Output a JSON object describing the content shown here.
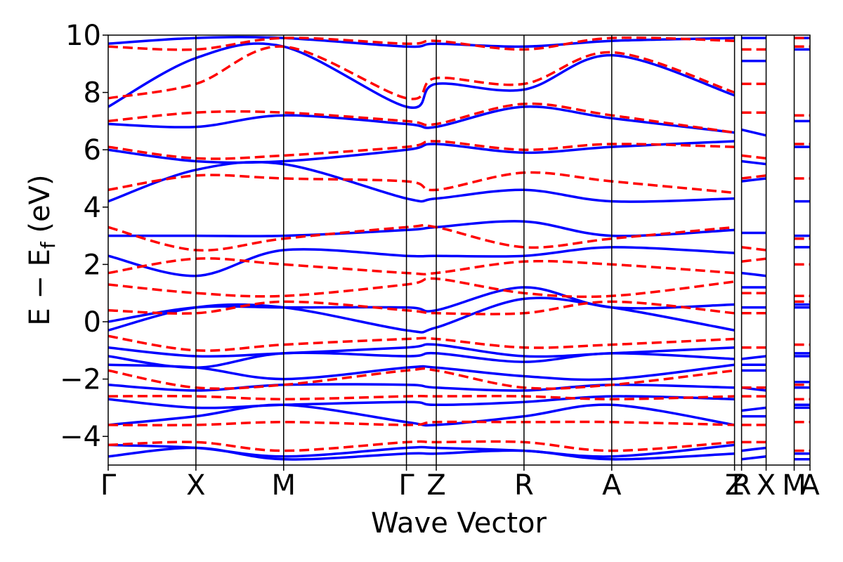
{
  "chart_data": {
    "type": "line",
    "title": "",
    "xlabel": "Wave Vector",
    "ylabel": "E − E_f (eV)",
    "ylabel_parts": {
      "main": "E − E",
      "sub": "f",
      "unit": " (eV)"
    },
    "ylim": [
      -5,
      10
    ],
    "yticks": [
      -4,
      -2,
      0,
      2,
      4,
      6,
      8,
      10
    ],
    "ytick_labels": [
      "−4",
      "−2",
      "0",
      "2",
      "4",
      "6",
      "8",
      "10"
    ],
    "kpath": {
      "labels": [
        "Γ",
        "X",
        "M",
        "Γ",
        "Z",
        "R",
        "A",
        "Z",
        "R",
        "X",
        "M",
        "A"
      ],
      "positions": [
        0.0,
        0.5,
        1.0,
        1.7,
        1.87,
        2.37,
        2.87,
        3.57,
        3.61,
        3.75,
        3.91,
        4.0
      ],
      "segment_breaks": [
        "Z|R",
        "X|M"
      ]
    },
    "x_range": [
      0.0,
      4.0
    ],
    "grid": false,
    "legend": "none",
    "series": [
      {
        "style": "solid",
        "color": "#0000ff",
        "energies_at_high_symmetry_points": [
          [
            -4.7,
            -4.4,
            -4.8,
            -4.6,
            -4.6,
            -4.5,
            -4.8,
            -4.6,
            -4.8,
            -4.7,
            -4.8,
            -4.8
          ],
          [
            -4.3,
            -4.4,
            -4.7,
            -4.4,
            -4.4,
            -4.5,
            -4.7,
            -4.3,
            -4.5,
            -4.4,
            -4.6,
            -4.6
          ],
          [
            -3.6,
            -3.3,
            -2.9,
            -3.5,
            -3.6,
            -3.3,
            -2.9,
            -3.6,
            -3.3,
            -3.3,
            -3.0,
            -3.0
          ],
          [
            -2.7,
            -3.0,
            -2.9,
            -2.8,
            -2.9,
            -2.8,
            -2.6,
            -2.7,
            -3.1,
            -3.0,
            -2.9,
            -2.9
          ],
          [
            -2.2,
            -2.4,
            -2.2,
            -2.2,
            -2.3,
            -2.4,
            -2.2,
            -2.3,
            -2.3,
            -2.4,
            -2.3,
            -2.3
          ],
          [
            -1.5,
            -1.6,
            -2.0,
            -1.6,
            -1.6,
            -1.9,
            -2.0,
            -1.5,
            -1.7,
            -1.7,
            -2.1,
            -2.1
          ],
          [
            -1.2,
            -1.6,
            -1.1,
            -1.2,
            -1.1,
            -1.4,
            -1.1,
            -1.3,
            -1.5,
            -1.5,
            -1.2,
            -1.2
          ],
          [
            -0.9,
            -1.2,
            -1.1,
            -0.9,
            -0.8,
            -1.2,
            -1.1,
            -0.9,
            -1.3,
            -1.2,
            -1.1,
            -1.1
          ],
          [
            -0.3,
            0.5,
            0.5,
            -0.3,
            -0.2,
            0.8,
            0.5,
            -0.3,
            0.5,
            0.5,
            0.5,
            0.5
          ],
          [
            0.0,
            0.5,
            0.5,
            0.5,
            0.4,
            1.2,
            0.5,
            0.6,
            1.2,
            1.2,
            0.6,
            0.6
          ],
          [
            2.3,
            1.6,
            2.5,
            2.3,
            2.3,
            2.3,
            2.6,
            2.4,
            1.7,
            1.6,
            2.6,
            2.6
          ],
          [
            3.0,
            3.0,
            3.0,
            3.2,
            3.3,
            3.5,
            3.0,
            3.2,
            3.1,
            3.1,
            3.0,
            3.0
          ],
          [
            4.2,
            5.3,
            5.5,
            4.3,
            4.3,
            4.6,
            4.2,
            4.3,
            4.9,
            5.0,
            4.2,
            4.2
          ],
          [
            6.0,
            5.6,
            5.6,
            6.0,
            6.2,
            5.9,
            6.1,
            6.3,
            5.6,
            5.5,
            6.1,
            6.1
          ],
          [
            6.9,
            6.8,
            7.2,
            6.9,
            6.8,
            7.5,
            7.1,
            6.6,
            6.7,
            6.5,
            7.0,
            7.0
          ],
          [
            7.5,
            9.2,
            9.6,
            7.5,
            8.3,
            8.1,
            9.3,
            7.9,
            9.1,
            9.1,
            9.5,
            9.5
          ],
          [
            9.7,
            9.9,
            9.9,
            9.6,
            9.7,
            9.6,
            9.8,
            9.9,
            9.9,
            9.9,
            9.9,
            9.9
          ]
        ]
      },
      {
        "style": "dashed",
        "color": "#ff0000",
        "energies_at_high_symmetry_points": [
          [
            -4.3,
            -4.2,
            -4.5,
            -4.2,
            -4.2,
            -4.2,
            -4.5,
            -4.2,
            -4.2,
            -4.2,
            -4.5,
            -4.5
          ],
          [
            -3.6,
            -3.6,
            -3.5,
            -3.6,
            -3.5,
            -3.5,
            -3.5,
            -3.6,
            -3.6,
            -3.6,
            -3.5,
            -3.5
          ],
          [
            -2.6,
            -2.6,
            -2.7,
            -2.6,
            -2.6,
            -2.6,
            -2.7,
            -2.6,
            -2.6,
            -2.6,
            -2.7,
            -2.7
          ],
          [
            -1.7,
            -2.3,
            -2.2,
            -1.7,
            -1.7,
            -2.3,
            -2.2,
            -1.7,
            -2.3,
            -2.3,
            -2.2,
            -2.2
          ],
          [
            -0.5,
            -1.0,
            -0.8,
            -0.6,
            -0.6,
            -0.9,
            -0.8,
            -0.6,
            -0.9,
            -0.9,
            -0.8,
            -0.8
          ],
          [
            0.4,
            0.3,
            0.7,
            0.4,
            0.3,
            0.3,
            0.7,
            0.3,
            0.3,
            0.3,
            0.7,
            0.7
          ],
          [
            1.3,
            1.0,
            0.9,
            1.3,
            1.5,
            1.0,
            0.9,
            1.4,
            1.0,
            1.0,
            0.9,
            0.9
          ],
          [
            1.7,
            2.2,
            2.0,
            1.7,
            1.7,
            2.1,
            2.0,
            1.7,
            2.1,
            2.2,
            2.0,
            2.0
          ],
          [
            3.3,
            2.5,
            2.9,
            3.3,
            3.3,
            2.6,
            2.9,
            3.3,
            2.6,
            2.5,
            2.9,
            2.9
          ],
          [
            4.6,
            5.1,
            5.0,
            4.9,
            4.6,
            5.2,
            4.9,
            4.5,
            5.0,
            5.1,
            5.0,
            5.0
          ],
          [
            6.1,
            5.7,
            5.8,
            6.1,
            6.3,
            6.0,
            6.2,
            6.1,
            5.8,
            5.7,
            6.2,
            6.2
          ],
          [
            7.0,
            7.3,
            7.3,
            7.0,
            6.9,
            7.6,
            7.2,
            6.6,
            7.3,
            7.3,
            7.2,
            7.2
          ],
          [
            7.8,
            8.3,
            9.6,
            7.8,
            8.5,
            8.3,
            9.4,
            8.0,
            8.3,
            8.3,
            9.6,
            9.6
          ],
          [
            9.6,
            9.5,
            9.9,
            9.7,
            9.8,
            9.5,
            9.9,
            9.8,
            9.5,
            9.5,
            9.9,
            9.9
          ]
        ]
      }
    ]
  }
}
